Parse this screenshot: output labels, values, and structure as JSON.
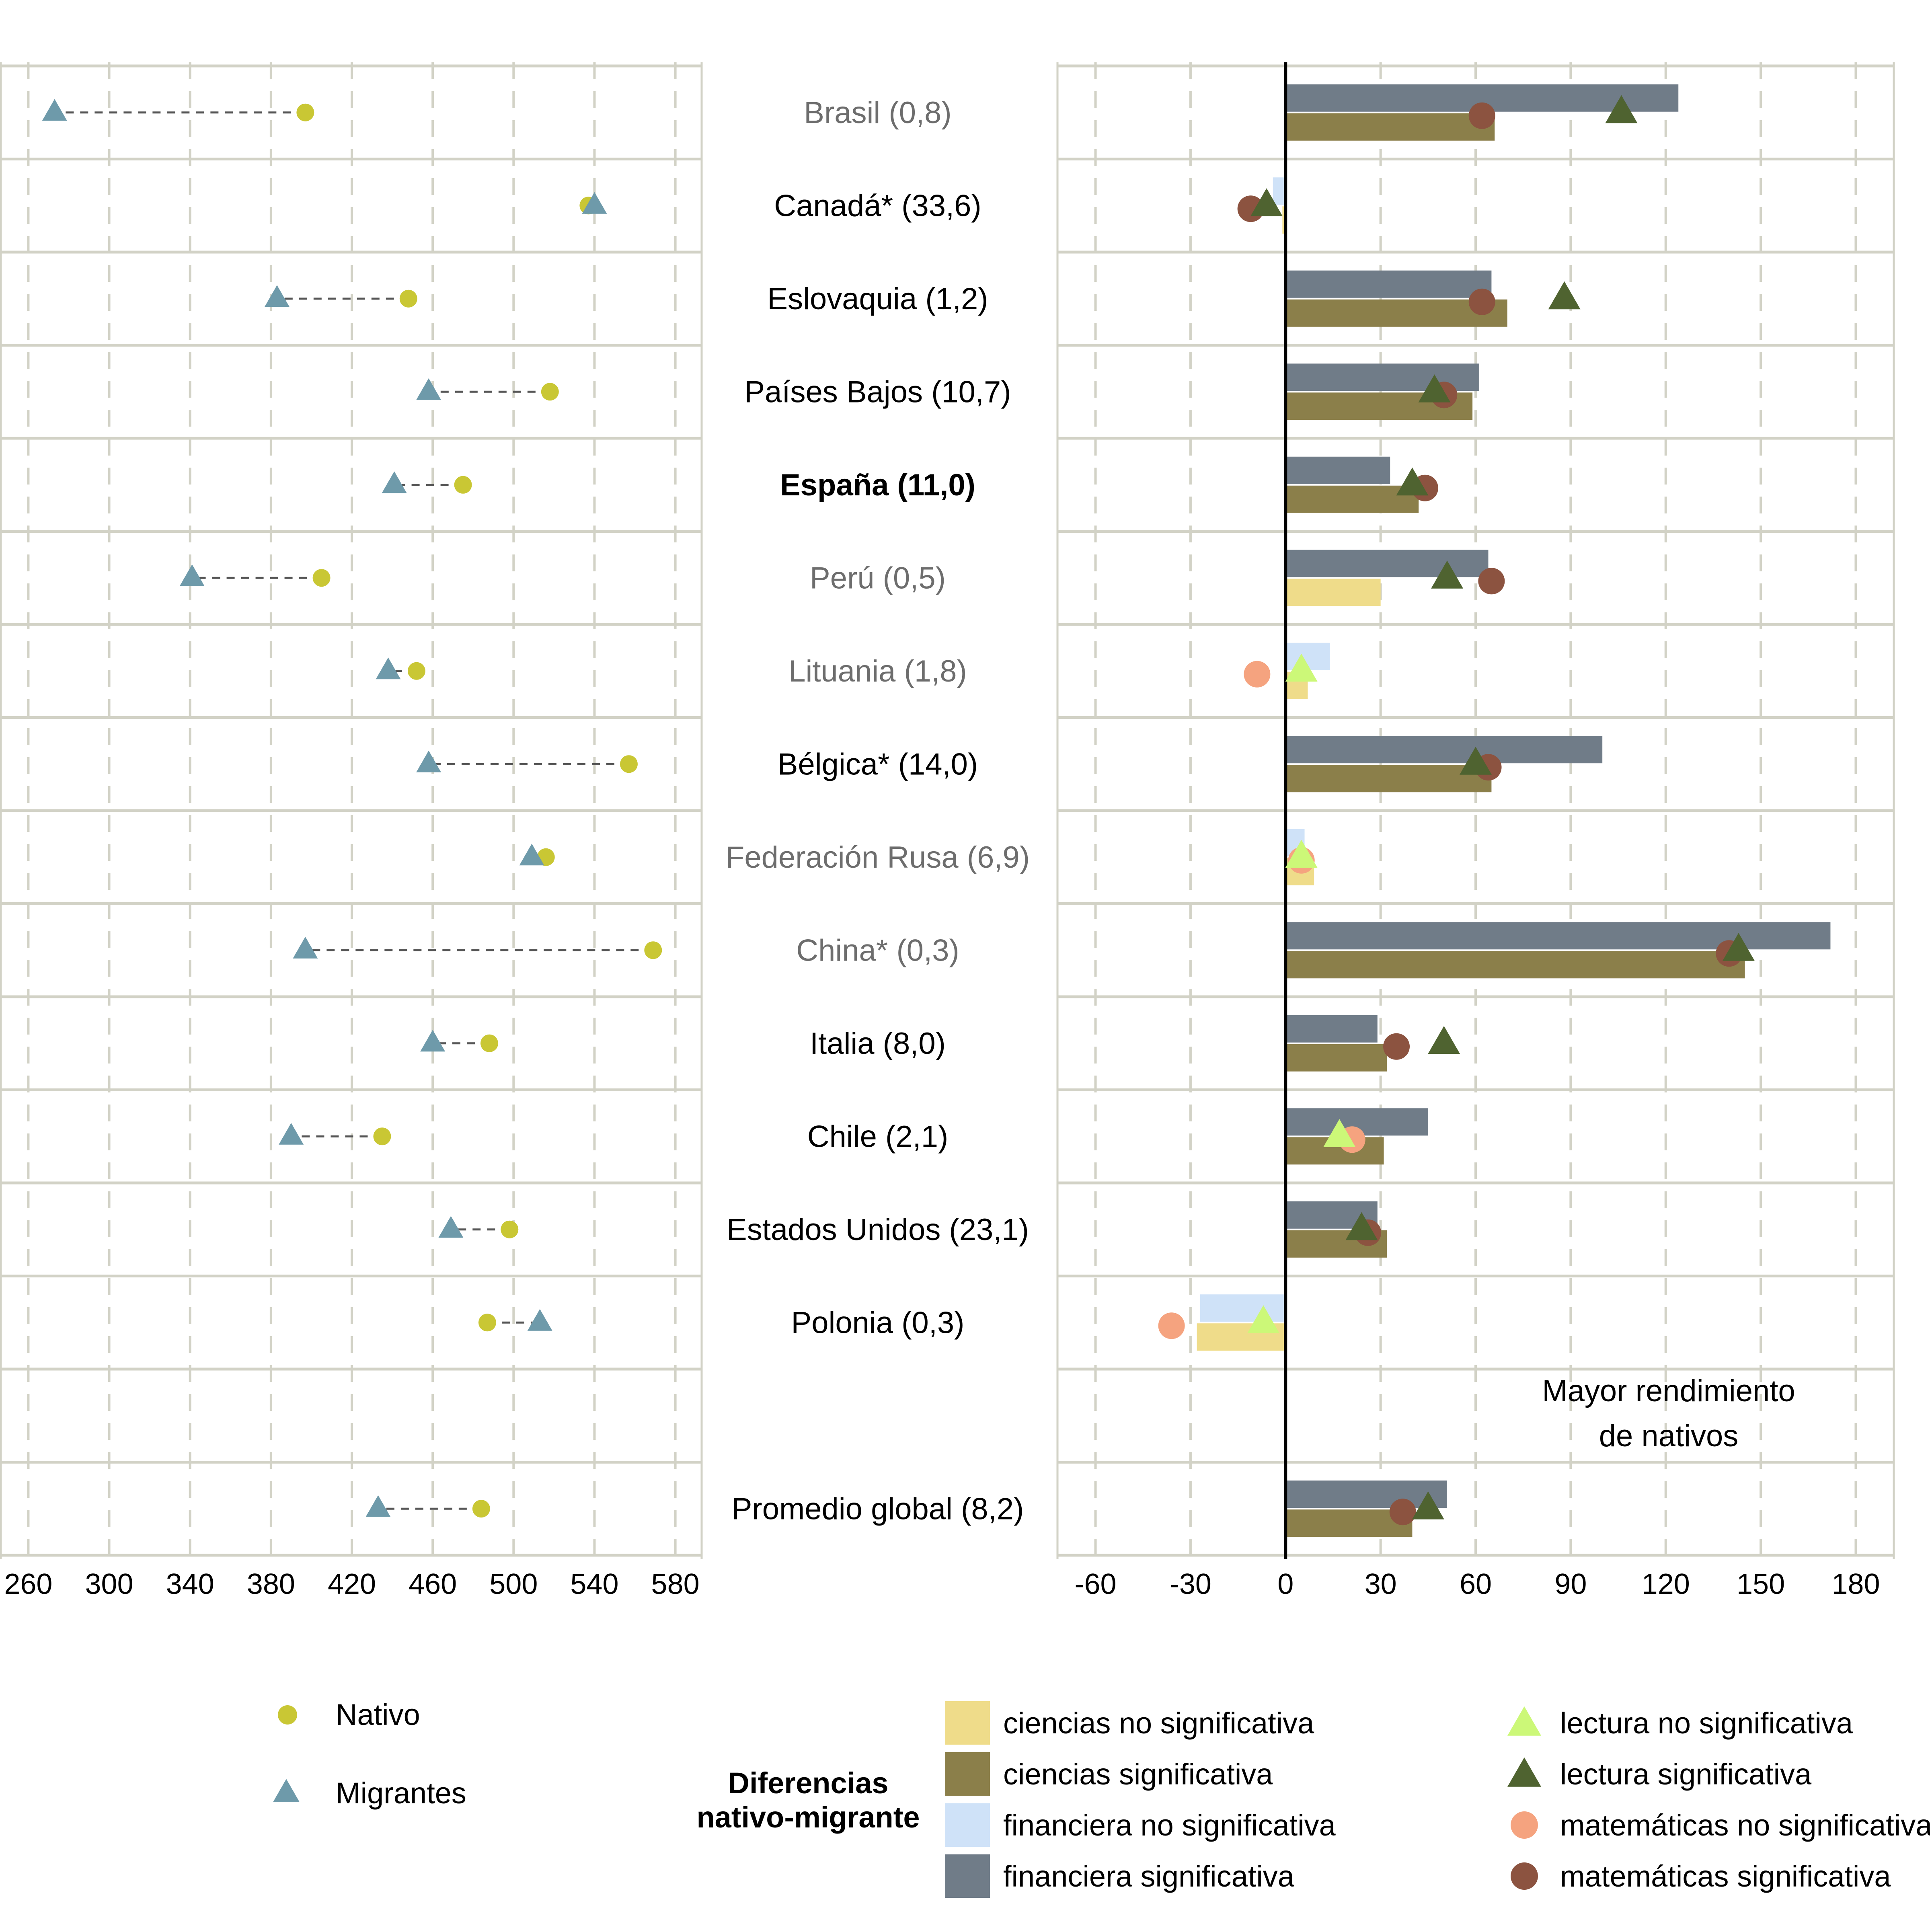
{
  "chart_data": [
    {
      "type": "scatter",
      "xticks": [
        260,
        300,
        340,
        380,
        420,
        460,
        500,
        540,
        580
      ],
      "xlim": [
        246,
        593
      ],
      "rows": [
        {
          "nativo": 397,
          "migrantes": 273
        },
        {
          "nativo": 537,
          "migrantes": 540
        },
        {
          "nativo": 448,
          "migrantes": 383
        },
        {
          "nativo": 518,
          "migrantes": 458
        },
        {
          "nativo": 475,
          "migrantes": 441
        },
        {
          "nativo": 405,
          "migrantes": 341
        },
        {
          "nativo": 452,
          "migrantes": 438
        },
        {
          "nativo": 557,
          "migrantes": 458
        },
        {
          "nativo": 516,
          "migrantes": 509
        },
        {
          "nativo": 569,
          "migrantes": 397
        },
        {
          "nativo": 488,
          "migrantes": 460
        },
        {
          "nativo": 435,
          "migrantes": 390
        },
        {
          "nativo": 498,
          "migrantes": 469
        },
        {
          "nativo": 487,
          "migrantes": 513
        },
        null,
        {
          "nativo": 484,
          "migrantes": 433
        }
      ]
    },
    {
      "type": "bar",
      "xticks": [
        -60,
        -30,
        0,
        30,
        60,
        90,
        120,
        150,
        180
      ],
      "xtick_labels": [
        "-60",
        "-30",
        "0",
        "30",
        "60",
        "90",
        "120",
        "150",
        "180"
      ],
      "xlim": [
        -72,
        192
      ],
      "annotation": [
        "Mayor rendimiento",
        "de nativos"
      ],
      "rows": [
        {
          "financiera": 124,
          "fin_sig": true,
          "ciencias": 66,
          "cie_sig": true,
          "lectura": 106,
          "lec_sig": true,
          "matematicas": 62,
          "mat_sig": true
        },
        {
          "financiera": -4,
          "fin_sig": false,
          "ciencias": -1,
          "cie_sig": false,
          "lectura": -6,
          "lec_sig": true,
          "matematicas": -11,
          "mat_sig": true
        },
        {
          "financiera": 65,
          "fin_sig": true,
          "ciencias": 70,
          "cie_sig": true,
          "lectura": 88,
          "lec_sig": true,
          "matematicas": 62,
          "mat_sig": true
        },
        {
          "financiera": 61,
          "fin_sig": true,
          "ciencias": 59,
          "cie_sig": true,
          "lectura": 47,
          "lec_sig": true,
          "matematicas": 50,
          "mat_sig": true
        },
        {
          "financiera": 33,
          "fin_sig": true,
          "ciencias": 42,
          "cie_sig": true,
          "lectura": 40,
          "lec_sig": true,
          "matematicas": 44,
          "mat_sig": true
        },
        {
          "financiera": 64,
          "fin_sig": true,
          "ciencias": 30,
          "cie_sig": false,
          "lectura": 51,
          "lec_sig": true,
          "matematicas": 65,
          "mat_sig": true
        },
        {
          "financiera": 14,
          "fin_sig": false,
          "ciencias": 7,
          "cie_sig": false,
          "lectura": 5,
          "lec_sig": false,
          "matematicas": -9,
          "mat_sig": false
        },
        {
          "financiera": 100,
          "fin_sig": true,
          "ciencias": 65,
          "cie_sig": true,
          "lectura": 60,
          "lec_sig": true,
          "matematicas": 64,
          "mat_sig": true
        },
        {
          "financiera": 6,
          "fin_sig": false,
          "ciencias": 9,
          "cie_sig": false,
          "lectura": 5,
          "lec_sig": false,
          "matematicas": 5,
          "mat_sig": false
        },
        {
          "financiera": 172,
          "fin_sig": true,
          "ciencias": 145,
          "cie_sig": true,
          "lectura": 143,
          "lec_sig": true,
          "matematicas": 140,
          "mat_sig": true
        },
        {
          "financiera": 29,
          "fin_sig": true,
          "ciencias": 32,
          "cie_sig": true,
          "lectura": 50,
          "lec_sig": true,
          "matematicas": 35,
          "mat_sig": true
        },
        {
          "financiera": 45,
          "fin_sig": true,
          "ciencias": 31,
          "cie_sig": true,
          "lectura": 17,
          "lec_sig": false,
          "matematicas": 21,
          "mat_sig": false
        },
        {
          "financiera": 29,
          "fin_sig": true,
          "ciencias": 32,
          "cie_sig": true,
          "lectura": 24,
          "lec_sig": true,
          "matematicas": 26,
          "mat_sig": true
        },
        {
          "financiera": -27,
          "fin_sig": false,
          "ciencias": -28,
          "cie_sig": false,
          "lectura": -7,
          "lec_sig": false,
          "matematicas": -36,
          "mat_sig": false
        },
        null,
        {
          "financiera": 51,
          "fin_sig": true,
          "ciencias": 40,
          "cie_sig": true,
          "lectura": 45,
          "lec_sig": true,
          "matematicas": 37,
          "mat_sig": true
        }
      ]
    }
  ],
  "countries": [
    {
      "label": "Brasil (0,8)",
      "style": "grey"
    },
    {
      "label": "Canadá* (33,6)",
      "style": "black"
    },
    {
      "label": "Eslovaquia (1,2)",
      "style": "black"
    },
    {
      "label": "Países Bajos (10,7)",
      "style": "black"
    },
    {
      "label": "España (11,0)",
      "style": "bold"
    },
    {
      "label": "Perú (0,5)",
      "style": "grey"
    },
    {
      "label": "Lituania (1,8)",
      "style": "grey"
    },
    {
      "label": "Bélgica* (14,0)",
      "style": "black"
    },
    {
      "label": "Federación Rusa (6,9)",
      "style": "grey"
    },
    {
      "label": "China* (0,3)",
      "style": "grey"
    },
    {
      "label": "Italia (8,0)",
      "style": "black"
    },
    {
      "label": "Chile (2,1)",
      "style": "black"
    },
    {
      "label": "Estados Unidos (23,1)",
      "style": "black"
    },
    {
      "label": "Polonia (0,3)",
      "style": "black"
    },
    {
      "label": "",
      "style": "black"
    },
    {
      "label": "Promedio global (8,2)",
      "style": "black"
    }
  ],
  "legend_left": {
    "nativo": "Nativo",
    "migrantes": "Migrantes"
  },
  "legend_right": {
    "title_line1": "Diferencias",
    "title_line2": "nativo-migrante",
    "items": [
      {
        "key": "cie_ns",
        "label": "ciencias no significativa"
      },
      {
        "key": "cie_s",
        "label": "ciencias significativa"
      },
      {
        "key": "fin_ns",
        "label": "financiera no significativa"
      },
      {
        "key": "fin_s",
        "label": "financiera significativa"
      },
      {
        "key": "lec_ns",
        "label": "lectura no significativa"
      },
      {
        "key": "lec_s",
        "label": "lectura significativa"
      },
      {
        "key": "mat_ns",
        "label": "matemáticas no significativa"
      },
      {
        "key": "mat_s",
        "label": "matemáticas significativa"
      }
    ]
  },
  "colors": {
    "grid": "#d2d2c6",
    "nativo": "#c9c734",
    "migrantes": "#6e9aaa",
    "connector": "#555555",
    "zero_line": "#000000",
    "label_black": "#000000",
    "label_grey": "#6d6d6d",
    "ciencias_ns": "#efdc8a",
    "ciencias_s": "#8b7f4a",
    "financiera_ns": "#cfe2f8",
    "financiera_s": "#707c88",
    "lectura_ns": "#ccf878",
    "lectura_s": "#4f6330",
    "matematicas_ns": "#f5a37f",
    "matematicas_s": "#8c5340"
  }
}
